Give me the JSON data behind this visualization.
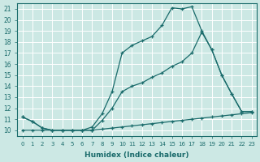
{
  "xlabel": "Humidex (Indice chaleur)",
  "xlim": [
    -0.5,
    23.5
  ],
  "ylim": [
    9.5,
    21.5
  ],
  "yticks": [
    10,
    11,
    12,
    13,
    14,
    15,
    16,
    17,
    18,
    19,
    20,
    21
  ],
  "xticks": [
    0,
    1,
    2,
    3,
    4,
    5,
    6,
    7,
    8,
    9,
    10,
    11,
    12,
    13,
    14,
    15,
    16,
    17,
    18,
    19,
    20,
    21,
    22,
    23
  ],
  "line_color": "#1a6b6b",
  "bg_color": "#cce8e4",
  "grid_color": "#ffffff",
  "line1_x": [
    0,
    1,
    2,
    3,
    4,
    5,
    6,
    7,
    8,
    9,
    10,
    11,
    12,
    13,
    14,
    15,
    16,
    17,
    18,
    19,
    20,
    21,
    22,
    23
  ],
  "line1_y": [
    11.2,
    10.8,
    10.2,
    10.0,
    10.0,
    10.0,
    10.0,
    10.3,
    11.5,
    13.5,
    17.0,
    17.7,
    18.1,
    18.5,
    19.5,
    21.1,
    21.0,
    21.2,
    19.0,
    17.3,
    15.0,
    13.3,
    11.7,
    11.7
  ],
  "line2_x": [
    0,
    1,
    2,
    3,
    4,
    5,
    6,
    7,
    8,
    9,
    10,
    11,
    12,
    13,
    14,
    15,
    16,
    17,
    18,
    19,
    20,
    21,
    22,
    23
  ],
  "line2_y": [
    11.2,
    10.8,
    10.2,
    10.0,
    10.0,
    10.0,
    10.0,
    10.0,
    10.9,
    12.0,
    13.5,
    14.0,
    14.3,
    14.8,
    15.2,
    15.8,
    16.2,
    17.0,
    18.9,
    17.3,
    15.0,
    13.3,
    11.7,
    11.7
  ],
  "line3_x": [
    0,
    1,
    2,
    3,
    4,
    5,
    6,
    7,
    8,
    9,
    10,
    11,
    12,
    13,
    14,
    15,
    16,
    17,
    18,
    19,
    20,
    21,
    22,
    23
  ],
  "line3_y": [
    10.0,
    10.0,
    10.0,
    10.0,
    10.0,
    10.0,
    10.0,
    10.0,
    10.1,
    10.2,
    10.3,
    10.4,
    10.5,
    10.6,
    10.7,
    10.8,
    10.9,
    11.0,
    11.1,
    11.2,
    11.3,
    11.4,
    11.5,
    11.6
  ]
}
